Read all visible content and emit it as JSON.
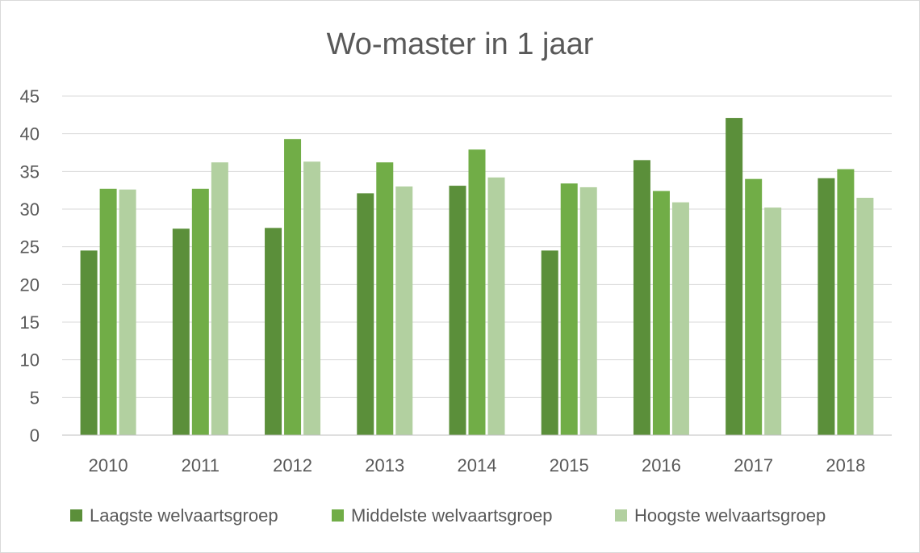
{
  "chart_data": {
    "type": "bar",
    "title": "Wo-master in 1 jaar",
    "xlabel": "",
    "ylabel": "",
    "ylim": [
      0,
      45
    ],
    "ytick_step": 5,
    "grid": true,
    "legend_position": "bottom",
    "categories": [
      "2010",
      "2011",
      "2012",
      "2013",
      "2014",
      "2015",
      "2016",
      "2017",
      "2018"
    ],
    "series": [
      {
        "name": "Laagste welvaartsgroep",
        "color": "#5b8f3a",
        "values": [
          24.5,
          27.4,
          27.5,
          32.1,
          33.1,
          24.5,
          36.5,
          42.1,
          34.1
        ]
      },
      {
        "name": "Middelste welvaartsgroep",
        "color": "#71ad47",
        "values": [
          32.7,
          32.7,
          39.3,
          36.2,
          37.9,
          33.4,
          32.4,
          34.0,
          35.3
        ]
      },
      {
        "name": "Hoogste welvaartsgroep",
        "color": "#b2d0a0",
        "values": [
          32.6,
          36.2,
          36.3,
          33.0,
          34.2,
          32.9,
          30.9,
          30.2,
          31.5
        ]
      }
    ]
  }
}
